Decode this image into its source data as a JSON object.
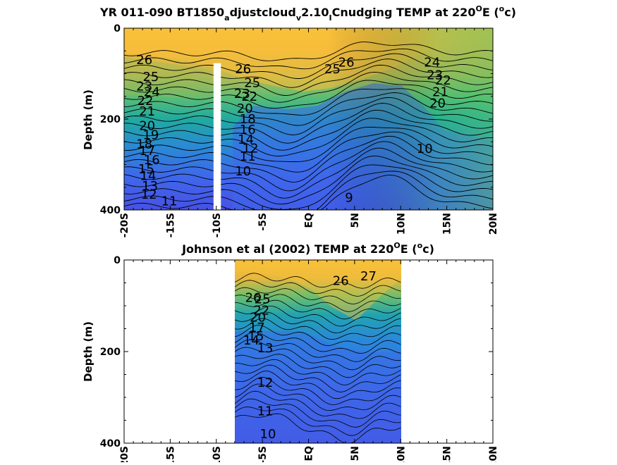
{
  "chart_data": [
    {
      "type": "heatmap",
      "title": {
        "p1": "YR 011-090 BT1850",
        "s1": "a",
        "p2": "djustcloud",
        "s2": "v",
        "p3": "2.10",
        "s3": "I",
        "p4": "Cnudging TEMP at 220",
        "s4": "O",
        "p5": "E (",
        "s5": "o",
        "p6": "c)"
      },
      "ylabel": "Depth (m)",
      "xlim": [
        -20,
        20
      ],
      "ylim": [
        400,
        0
      ],
      "x_ticks": [
        "-20S",
        "-15S",
        "-10S",
        "-5S",
        "EQ",
        "5N",
        "10N",
        "15N",
        "20N"
      ],
      "y_ticks": [
        "0",
        "200",
        "400"
      ],
      "data_extent_x": [
        -20,
        20
      ],
      "masked_column_x": [
        -10.3,
        -9.5
      ],
      "masked_column_depth": [
        77,
        400
      ],
      "colormap": "parula",
      "color_range": [
        9,
        28
      ],
      "contour_labels": [
        {
          "text": "26",
          "x": -17.8,
          "y": 70
        },
        {
          "text": "25",
          "x": -17.1,
          "y": 107
        },
        {
          "text": "24",
          "x": -17.0,
          "y": 140
        },
        {
          "text": "23",
          "x": -17.8,
          "y": 128
        },
        {
          "text": "22",
          "x": -17.7,
          "y": 160
        },
        {
          "text": "21",
          "x": -17.5,
          "y": 183
        },
        {
          "text": "20",
          "x": -17.5,
          "y": 215
        },
        {
          "text": "19",
          "x": -17.1,
          "y": 235
        },
        {
          "text": "18",
          "x": -17.8,
          "y": 255
        },
        {
          "text": "17",
          "x": -17.5,
          "y": 270
        },
        {
          "text": "16",
          "x": -17.0,
          "y": 290
        },
        {
          "text": "15",
          "x": -17.6,
          "y": 310
        },
        {
          "text": "14",
          "x": -17.4,
          "y": 325
        },
        {
          "text": "13",
          "x": -17.2,
          "y": 347
        },
        {
          "text": "12",
          "x": -17.3,
          "y": 366
        },
        {
          "text": "11",
          "x": -15.1,
          "y": 381
        },
        {
          "text": "26",
          "x": -7.1,
          "y": 90
        },
        {
          "text": "25",
          "x": -6.1,
          "y": 120
        },
        {
          "text": "23",
          "x": -7.2,
          "y": 144
        },
        {
          "text": "22",
          "x": -6.4,
          "y": 150
        },
        {
          "text": "20",
          "x": -6.9,
          "y": 177
        },
        {
          "text": "18",
          "x": -6.6,
          "y": 200
        },
        {
          "text": "16",
          "x": -6.6,
          "y": 223
        },
        {
          "text": "14",
          "x": -6.8,
          "y": 245
        },
        {
          "text": "12",
          "x": -6.3,
          "y": 264
        },
        {
          "text": "11",
          "x": -6.6,
          "y": 282
        },
        {
          "text": "10",
          "x": -7.1,
          "y": 315
        },
        {
          "text": "25",
          "x": 2.6,
          "y": 90
        },
        {
          "text": "26",
          "x": 4.1,
          "y": 75
        },
        {
          "text": "24",
          "x": 13.4,
          "y": 75
        },
        {
          "text": "23",
          "x": 13.7,
          "y": 103
        },
        {
          "text": "22",
          "x": 14.6,
          "y": 115
        },
        {
          "text": "21",
          "x": 14.3,
          "y": 140
        },
        {
          "text": "20",
          "x": 14.0,
          "y": 165
        },
        {
          "text": "10",
          "x": 12.6,
          "y": 265
        },
        {
          "text": "9",
          "x": 4.4,
          "y": 373
        }
      ]
    },
    {
      "type": "heatmap",
      "title": {
        "p1": "Johnson et al (2002) TEMP at 220",
        "s1": "O",
        "p2": "E (",
        "s2": "o",
        "p3": "c)"
      },
      "ylabel": "Depth (m)",
      "xlim": [
        -20,
        20
      ],
      "ylim": [
        400,
        0
      ],
      "x_ticks": [
        "-20S",
        "-15S",
        "-10S",
        "-5S",
        "EQ",
        "5N",
        "10N",
        "15N",
        "20N"
      ],
      "y_ticks": [
        "0",
        "200",
        "400"
      ],
      "data_extent_x": [
        -8,
        10
      ],
      "colormap": "parula",
      "color_range": [
        9,
        28
      ],
      "contour_labels": [
        {
          "text": "26",
          "x": 3.5,
          "y": 45
        },
        {
          "text": "27",
          "x": 6.5,
          "y": 35
        },
        {
          "text": "26",
          "x": -6.0,
          "y": 82
        },
        {
          "text": "25",
          "x": -5.0,
          "y": 85
        },
        {
          "text": "22",
          "x": -5.1,
          "y": 110
        },
        {
          "text": "20",
          "x": -5.5,
          "y": 125
        },
        {
          "text": "17",
          "x": -5.6,
          "y": 148
        },
        {
          "text": "15",
          "x": -5.7,
          "y": 166
        },
        {
          "text": "14",
          "x": -6.2,
          "y": 175
        },
        {
          "text": "13",
          "x": -4.7,
          "y": 192
        },
        {
          "text": "12",
          "x": -4.7,
          "y": 268
        },
        {
          "text": "11",
          "x": -4.7,
          "y": 330
        },
        {
          "text": "10",
          "x": -4.4,
          "y": 380
        }
      ]
    }
  ]
}
